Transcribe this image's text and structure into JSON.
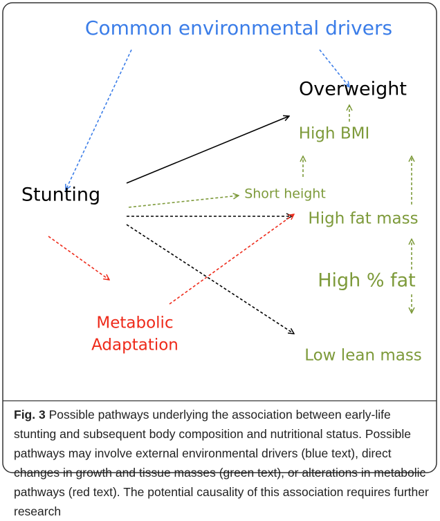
{
  "figure": {
    "nodes": {
      "drivers": "Common environmental drivers",
      "overweight": "Overweight",
      "high_bmi": "High BMI",
      "short_height": "Short height",
      "stunting": "Stunting",
      "high_fat_mass": "High fat mass",
      "high_pct_fat": "High % fat",
      "metabolic_1": "Metabolic",
      "metabolic_2": "Adaptation",
      "low_lean_mass": "Low lean mass"
    },
    "caption": {
      "label": "Fig. 3",
      "text": "Possible pathways underlying the association between early-life stunting and subsequent body composition and nutritional status. Possible pathways may involve external environmental drivers (blue text), direct changes in growth and tissue masses (green text), or alterations in metabolic pathways (red text). The potential causality of this association requires further research"
    }
  }
}
